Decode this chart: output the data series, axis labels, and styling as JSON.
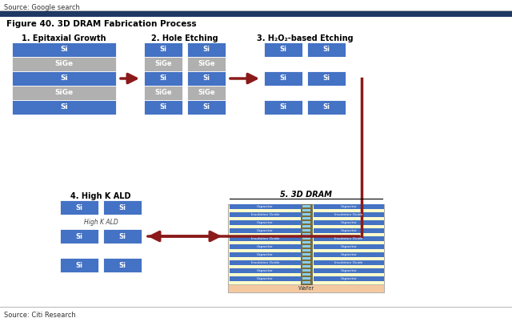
{
  "title": "Figure 40. 3D DRAM Fabrication Process",
  "source_top": "Source: Google search",
  "source_bottom": "Source: Citi Research",
  "bg_color": "#ffffff",
  "blue_color": "#4472C4",
  "gray_color": "#B0B0B0",
  "dark_red": "#8B1A1A",
  "yellow_bg": "#FFFFCC",
  "peach_color": "#F4C9A0",
  "step1_title": "1. Epitaxial Growth",
  "step2_title": "2. Hole Etching",
  "step3_title": "3. H₂O₂-based Etching",
  "step4_title": "4. High K ALD",
  "step5_title": "5. 3D DRAM"
}
